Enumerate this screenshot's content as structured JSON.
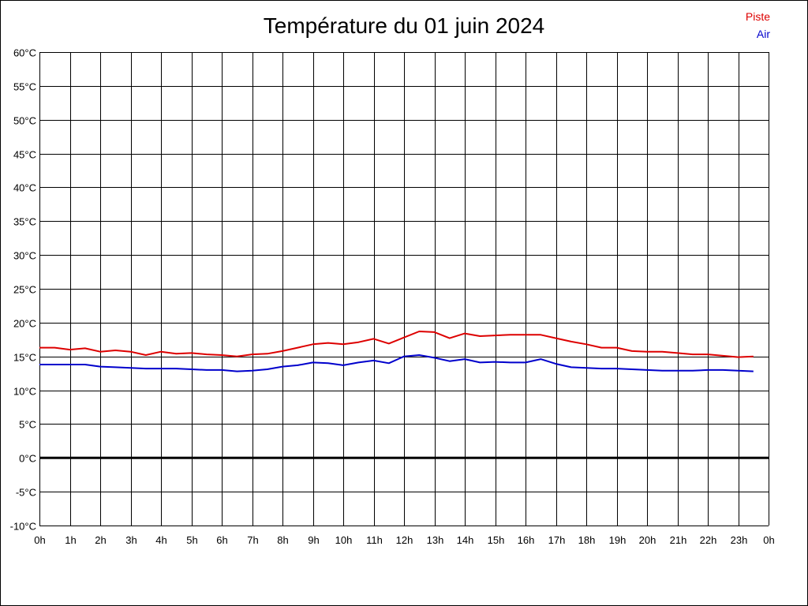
{
  "colors": {
    "piste": "#dd0000",
    "air": "#0000cc",
    "grid": "#000000",
    "zero": "#000000"
  },
  "chart_data": {
    "type": "line",
    "title": "Température du 01 juin 2024",
    "legend": "top-right",
    "grid": true,
    "xlim": [
      0,
      24
    ],
    "ylim": [
      -10,
      60
    ],
    "y_ticks": [
      "60°C",
      "55°C",
      "50°C",
      "45°C",
      "40°C",
      "35°C",
      "30°C",
      "25°C",
      "20°C",
      "15°C",
      "10°C",
      "5°C",
      "0°C",
      "-5°C",
      "-10°C"
    ],
    "x_ticks": [
      "0h",
      "1h",
      "2h",
      "3h",
      "4h",
      "5h",
      "6h",
      "7h",
      "8h",
      "9h",
      "10h",
      "11h",
      "12h",
      "13h",
      "14h",
      "15h",
      "16h",
      "17h",
      "18h",
      "19h",
      "20h",
      "21h",
      "22h",
      "23h",
      "0h"
    ],
    "series": [
      {
        "name": "Piste",
        "x": [
          0,
          0.5,
          1,
          1.5,
          2,
          2.5,
          3,
          3.5,
          4,
          4.5,
          5,
          5.5,
          6,
          6.5,
          7,
          7.5,
          8,
          8.5,
          9,
          9.5,
          10,
          10.5,
          11,
          11.5,
          12,
          12.5,
          13,
          13.5,
          14,
          14.5,
          15,
          15.5,
          16,
          16.5,
          17,
          17.5,
          18,
          18.5,
          19,
          19.5,
          20,
          20.5,
          21,
          21.5,
          22,
          22.5,
          23,
          23.5
        ],
        "values": [
          16.3,
          16.3,
          16.0,
          16.2,
          15.7,
          15.9,
          15.7,
          15.2,
          15.7,
          15.4,
          15.5,
          15.3,
          15.2,
          15.0,
          15.3,
          15.4,
          15.8,
          16.3,
          16.8,
          17.0,
          16.8,
          17.1,
          17.6,
          16.9,
          17.8,
          18.7,
          18.6,
          17.7,
          18.4,
          18.0,
          18.1,
          18.2,
          18.2,
          18.2,
          17.7,
          17.2,
          16.8,
          16.3,
          16.3,
          15.8,
          15.7,
          15.7,
          15.5,
          15.3,
          15.3,
          15.1,
          14.9,
          15.0
        ]
      },
      {
        "name": "Air",
        "x": [
          0,
          0.5,
          1,
          1.5,
          2,
          2.5,
          3,
          3.5,
          4,
          4.5,
          5,
          5.5,
          6,
          6.5,
          7,
          7.5,
          8,
          8.5,
          9,
          9.5,
          10,
          10.5,
          11,
          11.5,
          12,
          12.5,
          13,
          13.5,
          14,
          14.5,
          15,
          15.5,
          16,
          16.5,
          17,
          17.5,
          18,
          18.5,
          19,
          19.5,
          20,
          20.5,
          21,
          21.5,
          22,
          22.5,
          23,
          23.5
        ],
        "values": [
          13.8,
          13.8,
          13.8,
          13.8,
          13.5,
          13.4,
          13.3,
          13.2,
          13.2,
          13.2,
          13.1,
          13.0,
          13.0,
          12.8,
          12.9,
          13.1,
          13.5,
          13.7,
          14.1,
          14.0,
          13.7,
          14.1,
          14.4,
          14.0,
          15.0,
          15.2,
          14.8,
          14.3,
          14.6,
          14.1,
          14.2,
          14.1,
          14.1,
          14.6,
          13.9,
          13.4,
          13.3,
          13.2,
          13.2,
          13.1,
          13.0,
          12.9,
          12.9,
          12.9,
          13.0,
          13.0,
          12.9,
          12.8
        ]
      }
    ]
  }
}
